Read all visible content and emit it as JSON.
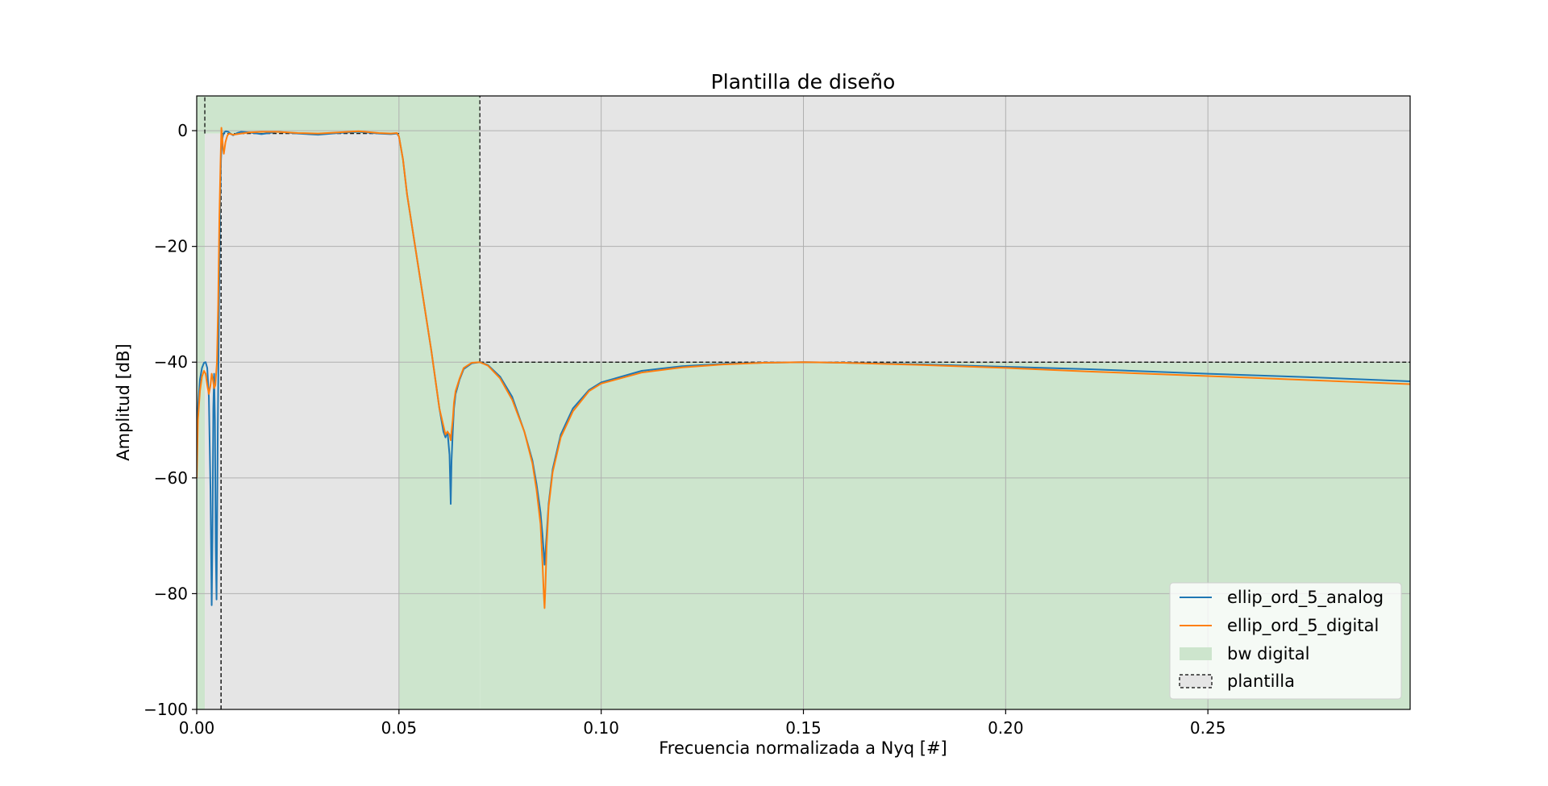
{
  "chart_data": {
    "type": "line",
    "title": "Plantilla de diseño",
    "xlabel": "Frecuencia normalizada a Nyq [#]",
    "ylabel": "Amplitud [dB]",
    "xlim": [
      0.0,
      0.3
    ],
    "ylim": [
      -100,
      6
    ],
    "xticks": [
      0.0,
      0.05,
      0.1,
      0.15,
      0.2,
      0.25
    ],
    "xtick_labels": [
      "0.00",
      "0.05",
      "0.10",
      "0.15",
      "0.20",
      "0.25"
    ],
    "yticks": [
      0,
      -20,
      -40,
      -60,
      -80,
      -100
    ],
    "ytick_labels": [
      "0",
      "−20",
      "−40",
      "−60",
      "−80",
      "−100"
    ],
    "grid": true,
    "legend_position": "lower-right",
    "bw_digital_color": "#cde5cd",
    "plantilla_color": "#e5e5e5",
    "bw_digital_regions": [
      {
        "x": [
          0.0,
          0.002
        ],
        "y": [
          -100,
          6
        ]
      },
      {
        "x": [
          0.002,
          0.05
        ],
        "y": [
          -0.5,
          6
        ]
      },
      {
        "x": [
          0.05,
          0.07
        ],
        "y": [
          -100,
          6
        ]
      },
      {
        "x": [
          0.07,
          0.3
        ],
        "y": [
          -100,
          -40
        ]
      }
    ],
    "plantilla_regions": [
      {
        "x": [
          0.002,
          0.006
        ],
        "y": [
          -100,
          -0.5
        ],
        "border_right": true
      },
      {
        "x": [
          0.006,
          0.05
        ],
        "y": [
          -100,
          -0.5
        ],
        "border_left": true,
        "border_top": true
      },
      {
        "x": [
          0.07,
          0.3
        ],
        "y": [
          -40,
          6
        ],
        "border_left": true,
        "border_bottom": true
      }
    ],
    "template_dashed_lines": [
      {
        "x": [
          0.002,
          0.002
        ],
        "y": [
          -0.5,
          6
        ]
      }
    ],
    "series": [
      {
        "name": "ellip_ord_5_analog",
        "color": "#1f77b4",
        "x": [
          0.0,
          0.0003,
          0.0008,
          0.0013,
          0.0018,
          0.0022,
          0.0026,
          0.003,
          0.0034,
          0.0037,
          0.0039,
          0.0041,
          0.0043,
          0.0045,
          0.0047,
          0.0049,
          0.0052,
          0.0055,
          0.0058,
          0.006,
          0.0062,
          0.0065,
          0.0068,
          0.0072,
          0.0078,
          0.0085,
          0.009,
          0.0095,
          0.01,
          0.011,
          0.013,
          0.016,
          0.02,
          0.025,
          0.03,
          0.035,
          0.04,
          0.045,
          0.048,
          0.0495,
          0.05,
          0.051,
          0.052,
          0.054,
          0.056,
          0.058,
          0.06,
          0.061,
          0.0615,
          0.062,
          0.0625,
          0.0628,
          0.063,
          0.0633,
          0.0636,
          0.064,
          0.065,
          0.066,
          0.068,
          0.07,
          0.072,
          0.075,
          0.078,
          0.081,
          0.083,
          0.084,
          0.085,
          0.0855,
          0.0858,
          0.086,
          0.0862,
          0.0865,
          0.087,
          0.088,
          0.09,
          0.093,
          0.097,
          0.1,
          0.11,
          0.12,
          0.13,
          0.14,
          0.15,
          0.16,
          0.18,
          0.2,
          0.22,
          0.25,
          0.275,
          0.3
        ],
        "y": [
          -56,
          -48,
          -43,
          -41,
          -40.1,
          -40,
          -41,
          -46,
          -62,
          -82,
          -70,
          -48,
          -42,
          -50,
          -72,
          -81,
          -52,
          -30,
          -12,
          -5,
          -2,
          -0.8,
          -0.3,
          -0.1,
          -0.2,
          -0.6,
          -0.8,
          -0.6,
          -0.4,
          -0.2,
          -0.3,
          -0.6,
          -0.2,
          -0.5,
          -0.7,
          -0.4,
          -0.2,
          -0.5,
          -0.6,
          -0.5,
          -1,
          -5,
          -11,
          -20,
          -29,
          -38,
          -48,
          -52,
          -53,
          -52,
          -56,
          -64.5,
          -57,
          -52,
          -48,
          -45.5,
          -43,
          -41.2,
          -40.2,
          -40,
          -40.5,
          -42.5,
          -46,
          -52,
          -57,
          -61,
          -66,
          -70,
          -73,
          -75,
          -73,
          -70,
          -64.5,
          -58.5,
          -52.5,
          -48,
          -44.8,
          -43.5,
          -41.5,
          -40.7,
          -40.3,
          -40.1,
          -40,
          -40.1,
          -40.4,
          -40.8,
          -41.2,
          -42,
          -42.6,
          -43.3
        ]
      },
      {
        "name": "ellip_ord_5_digital",
        "color": "#ff7f0e",
        "x": [
          0.0,
          0.0003,
          0.0008,
          0.0013,
          0.0018,
          0.0022,
          0.0026,
          0.003,
          0.0034,
          0.0037,
          0.004,
          0.0043,
          0.0046,
          0.005,
          0.0053,
          0.0056,
          0.0059,
          0.0061,
          0.0063,
          0.0065,
          0.0067,
          0.0069,
          0.0071,
          0.0073,
          0.0076,
          0.008,
          0.0085,
          0.009,
          0.01,
          0.011,
          0.013,
          0.016,
          0.02,
          0.025,
          0.03,
          0.035,
          0.04,
          0.045,
          0.048,
          0.0495,
          0.05,
          0.051,
          0.052,
          0.054,
          0.056,
          0.058,
          0.06,
          0.061,
          0.0615,
          0.062,
          0.0625,
          0.0628,
          0.063,
          0.0633,
          0.0636,
          0.064,
          0.065,
          0.066,
          0.068,
          0.07,
          0.072,
          0.075,
          0.078,
          0.081,
          0.083,
          0.084,
          0.085,
          0.0855,
          0.0858,
          0.086,
          0.0862,
          0.0865,
          0.087,
          0.088,
          0.09,
          0.093,
          0.097,
          0.1,
          0.11,
          0.12,
          0.13,
          0.14,
          0.15,
          0.16,
          0.18,
          0.2,
          0.22,
          0.25,
          0.275,
          0.3
        ],
        "y": [
          -60,
          -50,
          -45,
          -42.5,
          -41.5,
          -42,
          -44,
          -45.5,
          -44,
          -42,
          -43,
          -44.5,
          -44,
          -40,
          -30,
          -15,
          -5,
          0.5,
          -1,
          -3,
          -4,
          -3,
          -2,
          -1.5,
          -0.8,
          -0.5,
          -0.6,
          -0.7,
          -0.6,
          -0.5,
          -0.3,
          -0.2,
          -0.2,
          -0.4,
          -0.5,
          -0.3,
          -0.1,
          -0.4,
          -0.5,
          -0.4,
          -1,
          -5,
          -11,
          -20,
          -29,
          -38,
          -48,
          -51,
          -52.5,
          -52,
          -52.5,
          -53.5,
          -52,
          -50,
          -47,
          -45,
          -42.8,
          -41,
          -40.1,
          -40,
          -40.6,
          -42.8,
          -46.5,
          -52,
          -57.5,
          -62,
          -68,
          -75,
          -80,
          -82.5,
          -79,
          -72,
          -65,
          -59,
          -53,
          -48.5,
          -45,
          -43.7,
          -41.8,
          -40.9,
          -40.4,
          -40.1,
          -40,
          -40.1,
          -40.5,
          -41,
          -41.6,
          -42.4,
          -43.1,
          -43.8
        ]
      }
    ],
    "legend": {
      "entries": [
        {
          "label": "ellip_ord_5_analog",
          "kind": "line",
          "color": "#1f77b4"
        },
        {
          "label": "ellip_ord_5_digital",
          "kind": "line",
          "color": "#ff7f0e"
        },
        {
          "label": "bw digital",
          "kind": "patch",
          "color": "#cde5cd"
        },
        {
          "label": "plantilla",
          "kind": "patch-dashed",
          "color": "#e5e5e5"
        }
      ]
    }
  }
}
